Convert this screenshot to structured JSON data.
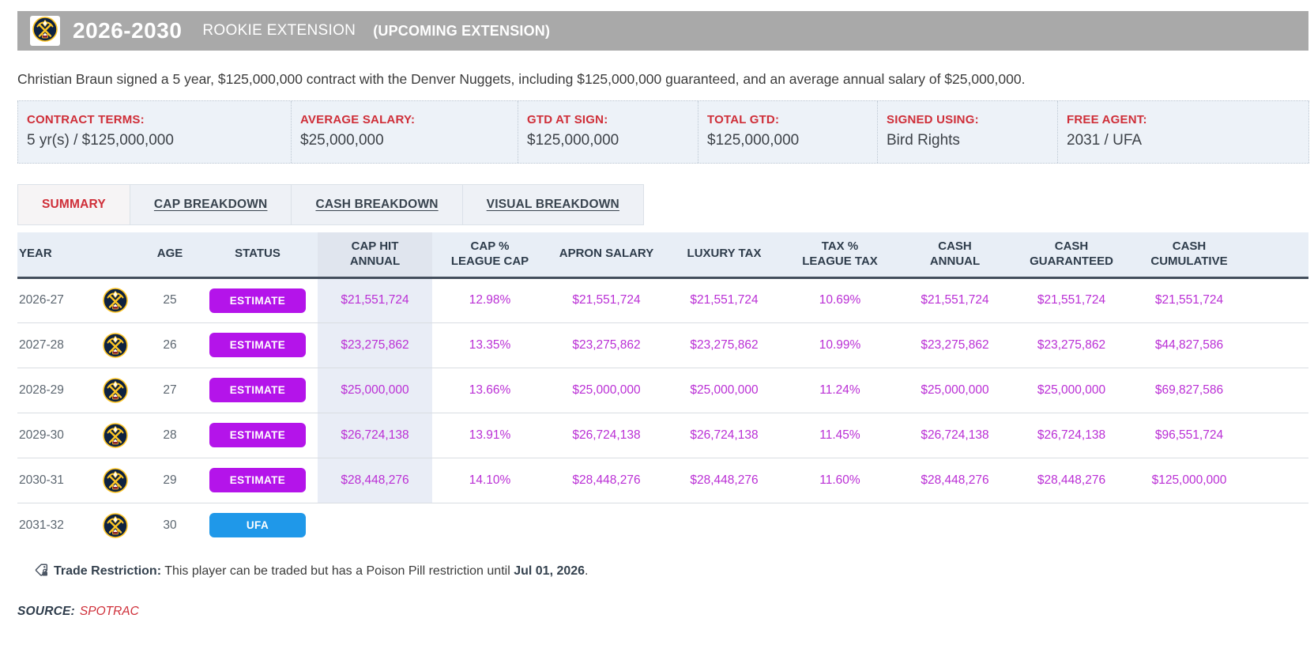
{
  "colors": {
    "header_bar_bg": "#a9a9a9",
    "accent_red": "#cf2e38",
    "estimate_badge": "#b414ea",
    "ufa_badge": "#1f98e9",
    "value_magenta": "#ba2fd5",
    "terms_bg": "#edf2f8",
    "table_header_bg": "#e8eef6",
    "highlight_col_bg": "#e9edf6",
    "highlight_col_header_bg": "#e0e5ee"
  },
  "header": {
    "years": "2026-2030",
    "contract_type": "ROOKIE EXTENSION",
    "note": "(UPCOMING EXTENSION)",
    "team": "Denver Nuggets"
  },
  "summary_sentence": "Christian Braun signed a 5 year, $125,000,000 contract with the Denver Nuggets, including $125,000,000 guaranteed, and an average annual salary of $25,000,000.",
  "terms": [
    {
      "label": "CONTRACT TERMS:",
      "value": "5 yr(s) / $125,000,000"
    },
    {
      "label": "AVERAGE SALARY:",
      "value": "$25,000,000"
    },
    {
      "label": "GTD AT SIGN:",
      "value": "$125,000,000"
    },
    {
      "label": "TOTAL GTD:",
      "value": "$125,000,000"
    },
    {
      "label": "SIGNED USING:",
      "value": "Bird Rights"
    },
    {
      "label": "FREE AGENT:",
      "value": "2031 / UFA"
    }
  ],
  "tabs": [
    {
      "label": "SUMMARY",
      "active": true
    },
    {
      "label": "CAP BREAKDOWN",
      "active": false
    },
    {
      "label": "CASH BREAKDOWN",
      "active": false
    },
    {
      "label": "VISUAL BREAKDOWN",
      "active": false
    }
  ],
  "table": {
    "columns": [
      {
        "id": "year",
        "label": "YEAR"
      },
      {
        "id": "team-logo",
        "label": ""
      },
      {
        "id": "age",
        "label": "AGE"
      },
      {
        "id": "status",
        "label": "STATUS"
      },
      {
        "id": "cap-hit-annual",
        "label": "CAP HIT\nANNUAL",
        "highlight": true
      },
      {
        "id": "cap-pct-league-cap",
        "label": "CAP %\nLEAGUE CAP"
      },
      {
        "id": "apron-salary",
        "label": "APRON SALARY"
      },
      {
        "id": "luxury-tax",
        "label": "LUXURY TAX"
      },
      {
        "id": "tax-pct-league-tax",
        "label": "TAX %\nLEAGUE TAX"
      },
      {
        "id": "cash-annual",
        "label": "CASH\nANNUAL"
      },
      {
        "id": "cash-guaranteed",
        "label": "CASH\nGUARANTEED"
      },
      {
        "id": "cash-cumulative",
        "label": "CASH\nCUMULATIVE"
      },
      {
        "id": "spacer",
        "label": ""
      }
    ],
    "rows": [
      {
        "year": "2026-27",
        "age": "25",
        "status": "ESTIMATE",
        "status_type": "estimate",
        "values": [
          "$21,551,724",
          "12.98%",
          "$21,551,724",
          "$21,551,724",
          "10.69%",
          "$21,551,724",
          "$21,551,724",
          "$21,551,724"
        ]
      },
      {
        "year": "2027-28",
        "age": "26",
        "status": "ESTIMATE",
        "status_type": "estimate",
        "values": [
          "$23,275,862",
          "13.35%",
          "$23,275,862",
          "$23,275,862",
          "10.99%",
          "$23,275,862",
          "$23,275,862",
          "$44,827,586"
        ]
      },
      {
        "year": "2028-29",
        "age": "27",
        "status": "ESTIMATE",
        "status_type": "estimate",
        "values": [
          "$25,000,000",
          "13.66%",
          "$25,000,000",
          "$25,000,000",
          "11.24%",
          "$25,000,000",
          "$25,000,000",
          "$69,827,586"
        ]
      },
      {
        "year": "2029-30",
        "age": "28",
        "status": "ESTIMATE",
        "status_type": "estimate",
        "values": [
          "$26,724,138",
          "13.91%",
          "$26,724,138",
          "$26,724,138",
          "11.45%",
          "$26,724,138",
          "$26,724,138",
          "$96,551,724"
        ]
      },
      {
        "year": "2030-31",
        "age": "29",
        "status": "ESTIMATE",
        "status_type": "estimate",
        "values": [
          "$28,448,276",
          "14.10%",
          "$28,448,276",
          "$28,448,276",
          "11.60%",
          "$28,448,276",
          "$28,448,276",
          "$125,000,000"
        ]
      },
      {
        "year": "2031-32",
        "age": "30",
        "status": "UFA",
        "status_type": "ufa",
        "values": [
          "",
          "",
          "",
          "",
          "",
          "",
          "",
          ""
        ]
      }
    ]
  },
  "trade_restriction": {
    "label": "Trade Restriction:",
    "text": " This player can be traded but has a Poison Pill restriction until ",
    "date": "Jul 01, 2026",
    "suffix": "."
  },
  "source": {
    "label": "SOURCE:",
    "link": "SPOTRAC"
  }
}
